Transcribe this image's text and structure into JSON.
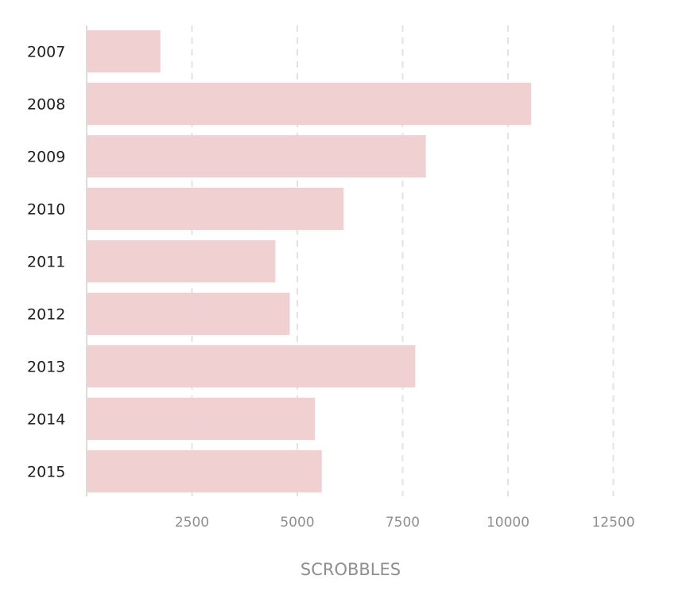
{
  "chart_data": {
    "type": "bar",
    "orientation": "horizontal",
    "categories": [
      "2007",
      "2008",
      "2009",
      "2010",
      "2011",
      "2012",
      "2013",
      "2014",
      "2015"
    ],
    "values": [
      1750,
      10550,
      8050,
      6100,
      4480,
      4820,
      7800,
      5420,
      5580
    ],
    "xlabel": "SCROBBLES",
    "ylabel": "",
    "title": "",
    "xlim": [
      0,
      13000
    ],
    "x_ticks": [
      2500,
      5000,
      7500,
      10000,
      12500
    ],
    "x_tick_labels": [
      "2500",
      "5000",
      "7500",
      "10000",
      "12500"
    ],
    "grid": "vertical-dashed",
    "legend": "none",
    "bar_color": "#f0cdd0",
    "grid_color": "#e3e3e3",
    "axis_color": "#dcdcdc"
  }
}
